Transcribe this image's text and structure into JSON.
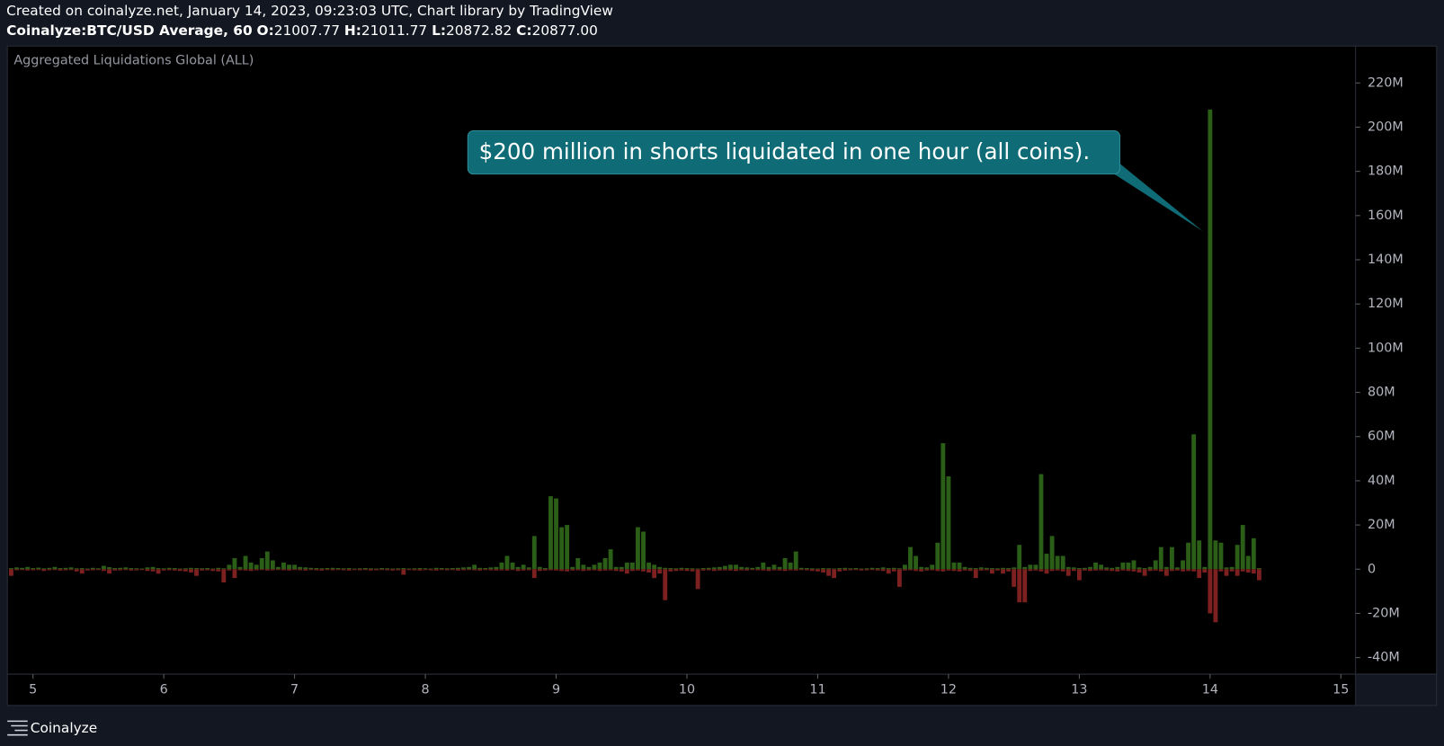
{
  "header": {
    "created": "Created on coinalyze.net, January 14, 2023, 09:23:03 UTC, Chart library by TradingView",
    "symbol": "Coinalyze:BTC/USD Average, 60",
    "ohlc": [
      {
        "label": "O:",
        "value": "21007.77"
      },
      {
        "label": "H:",
        "value": "21011.77"
      },
      {
        "label": "L:",
        "value": "20872.82"
      },
      {
        "label": "C:",
        "value": "20877.00"
      }
    ]
  },
  "footer": {
    "brand": "Coinalyze"
  },
  "chart_data": {
    "type": "bar",
    "title": "Aggregated Liquidations Global (ALL)",
    "annotation": "$200 million in shorts liquidated in one hour (all coins).",
    "x": [
      92,
      93,
      94,
      95,
      96,
      97,
      98,
      99,
      100,
      101,
      102,
      103,
      104,
      105,
      106,
      107,
      108,
      109,
      110,
      111,
      112,
      113,
      114,
      115,
      116,
      117,
      118,
      119,
      120,
      121,
      122,
      123,
      124,
      125,
      126,
      127,
      128,
      129,
      130,
      131,
      132,
      133,
      134,
      135,
      136,
      137,
      138,
      139,
      140,
      141,
      142,
      143,
      144,
      145,
      146,
      147,
      148,
      149,
      150,
      151,
      152,
      153,
      154,
      155,
      156,
      157,
      158,
      159,
      160,
      161,
      162,
      163,
      164,
      165,
      166,
      167,
      168,
      169,
      170,
      171,
      172,
      173,
      174,
      175,
      176,
      177,
      178,
      179,
      180,
      181,
      182,
      183,
      184,
      185,
      186,
      187,
      188,
      189,
      190,
      191,
      192,
      193,
      194,
      195,
      196,
      197,
      198,
      199,
      200,
      201,
      202,
      203,
      204,
      205,
      206,
      207,
      208,
      209,
      210,
      211,
      212,
      213,
      214,
      215,
      216,
      217,
      218,
      219,
      220,
      221,
      222,
      223,
      224,
      225,
      226,
      227,
      228,
      229,
      230,
      231,
      232,
      233,
      234,
      235,
      236,
      237,
      238,
      239,
      240,
      241,
      242,
      243,
      244,
      245,
      246,
      247,
      248,
      249,
      250,
      251,
      252,
      253,
      254,
      255,
      256,
      257,
      258,
      259,
      260,
      261,
      262,
      263,
      264,
      265,
      266,
      267,
      268,
      269,
      270,
      271,
      272,
      273,
      274,
      275,
      276,
      277,
      278,
      279,
      280,
      281,
      282,
      283,
      284,
      285,
      286,
      287,
      288,
      289,
      290,
      291,
      292,
      293,
      294,
      295,
      296,
      297,
      298,
      299,
      300,
      301,
      302,
      303,
      304,
      305,
      306,
      307,
      308,
      309,
      310,
      311,
      312,
      313,
      314,
      315,
      316,
      317,
      318,
      319,
      320,
      321
    ],
    "series": [
      {
        "color": "#2b5f18",
        "values": [
          0.5,
          0.8,
          0.6,
          1,
          0.5,
          0.7,
          0.4,
          0.6,
          1,
          0.5,
          0.6,
          0.8,
          0.4,
          0.5,
          0.3,
          0.6,
          0.4,
          1.5,
          0.9,
          0.5,
          0.6,
          0.8,
          0.5,
          0.4,
          0.3,
          0.8,
          1,
          0.5,
          0.4,
          0.6,
          0.5,
          0.3,
          0.4,
          0.6,
          0.5,
          0.4,
          0.5,
          0.3,
          0.6,
          0.4,
          2,
          5,
          1,
          6,
          3,
          2,
          5,
          8,
          4,
          1,
          3,
          2,
          2,
          1,
          0.8,
          0.6,
          0.5,
          0.4,
          0.5,
          0.6,
          0.5,
          0.4,
          0.5,
          0.3,
          0.4,
          0.5,
          0.4,
          0.3,
          0.5,
          0.4,
          0.3,
          0.4,
          0.5,
          0.3,
          0.4,
          0.5,
          0.4,
          0.3,
          0.6,
          0.5,
          0.4,
          0.5,
          0.6,
          0.8,
          1,
          2,
          0.6,
          0.5,
          0.8,
          1,
          3,
          6,
          3,
          1,
          2,
          0.8,
          15,
          1,
          0.5,
          33,
          32,
          19,
          20,
          1,
          5,
          2,
          1,
          2,
          3,
          5,
          9,
          1,
          1,
          3,
          3,
          19,
          17,
          3,
          2,
          1,
          0.6,
          0.5,
          0.4,
          0.6,
          0.5,
          0.4,
          0.3,
          0.5,
          0.6,
          0.8,
          1,
          1.5,
          2,
          2,
          1,
          0.8,
          0.6,
          1,
          3,
          1,
          2,
          1,
          5,
          3,
          8,
          0.6,
          0.5,
          0.4,
          0.3,
          0.5,
          0.4,
          0.3,
          0.5,
          0.6,
          0.4,
          0.5,
          0.3,
          0.4,
          0.6,
          0.5,
          0.8,
          0.5,
          0.6,
          0.4,
          2,
          10,
          6,
          1,
          0.8,
          2,
          12,
          57,
          42,
          3,
          3,
          1,
          0.6,
          0.5,
          0.8,
          0.6,
          0.5,
          0.4,
          0.6,
          0.5,
          0.8,
          11,
          1,
          2,
          2,
          43,
          7,
          15,
          6,
          6,
          1,
          0.8,
          0.5,
          0.6,
          1,
          3,
          2,
          0.8,
          0.6,
          1,
          3,
          3,
          4,
          0.8,
          0.5,
          1,
          4,
          10,
          1,
          10,
          0.8,
          4,
          12,
          61,
          13,
          1,
          208,
          13,
          12,
          0.8,
          1,
          11,
          20,
          6,
          14,
          0.5
        ]
      },
      {
        "color": "#7d2020",
        "values": [
          -3,
          -0.5,
          -0.4,
          -0.6,
          -0.5,
          -0.4,
          -0.8,
          -0.5,
          -0.4,
          -0.6,
          -0.5,
          -0.4,
          -1,
          -2,
          -0.6,
          -0.5,
          -0.4,
          -0.8,
          -2,
          -0.6,
          -0.5,
          -0.4,
          -0.6,
          -0.5,
          -0.4,
          -0.8,
          -1,
          -2,
          -0.6,
          -0.5,
          -0.6,
          -0.8,
          -1,
          -1.5,
          -3,
          -0.6,
          -0.5,
          -0.8,
          -1,
          -6,
          -0.6,
          -4,
          -0.5,
          -0.6,
          -0.8,
          -0.5,
          -0.4,
          -0.6,
          -0.5,
          -0.4,
          -0.5,
          -0.6,
          -0.4,
          -0.5,
          -0.6,
          -0.4,
          -0.5,
          -0.6,
          -0.4,
          -0.5,
          -0.4,
          -0.5,
          -0.6,
          -0.4,
          -0.5,
          -0.4,
          -0.6,
          -0.5,
          -0.4,
          -0.5,
          -0.6,
          -0.5,
          -2.5,
          -0.4,
          -0.5,
          -0.6,
          -0.4,
          -0.5,
          -0.6,
          -0.4,
          -0.5,
          -0.4,
          -0.6,
          -0.5,
          -0.4,
          -0.5,
          -0.6,
          -0.4,
          -0.5,
          -0.6,
          -0.5,
          -0.6,
          -0.4,
          -0.8,
          -0.6,
          -0.5,
          -4,
          -0.8,
          -0.6,
          -0.5,
          -0.6,
          -0.8,
          -1,
          -0.6,
          -0.5,
          -0.8,
          -0.6,
          -0.5,
          -0.8,
          -0.6,
          -0.5,
          -0.8,
          -1,
          -2,
          -0.8,
          -0.6,
          -1,
          -1.5,
          -4,
          -2,
          -14,
          -1,
          -0.8,
          -0.6,
          -0.8,
          -1,
          -9,
          -0.6,
          -0.5,
          -0.8,
          -0.6,
          -0.5,
          -0.6,
          -0.8,
          -0.5,
          -0.6,
          -0.4,
          -0.5,
          -0.6,
          -0.8,
          -0.5,
          -0.6,
          -0.8,
          -0.5,
          -0.6,
          -0.4,
          -0.5,
          -0.8,
          -1,
          -1.5,
          -3,
          -4,
          -1,
          -0.6,
          -0.5,
          -0.4,
          -0.6,
          -0.5,
          -0.4,
          -0.6,
          -0.8,
          -2,
          -1,
          -8,
          -0.6,
          -0.5,
          -0.8,
          -1,
          -0.6,
          -0.5,
          -0.8,
          -1,
          -0.6,
          -0.8,
          -1,
          -0.6,
          -0.8,
          -4,
          -0.6,
          -0.5,
          -2,
          -0.6,
          -2,
          -1,
          -8,
          -15,
          -15,
          -0.8,
          -0.6,
          -1,
          -2,
          -0.8,
          -0.6,
          -1,
          -3,
          -0.8,
          -5,
          -0.6,
          -0.8,
          -0.6,
          -0.5,
          -0.6,
          -0.8,
          -1,
          -0.6,
          -0.8,
          -1,
          -1.5,
          -3,
          -0.8,
          -0.6,
          -1,
          -3,
          -0.8,
          -0.6,
          -1,
          -0.8,
          -1,
          -4,
          -1.5,
          -20,
          -24,
          -1,
          -3,
          -1,
          -3,
          -1,
          -1.5,
          -2,
          -5
        ]
      }
    ],
    "xlim": [
      91.3,
      338.7
    ],
    "xticks": [
      {
        "value": 96,
        "label": "5"
      },
      {
        "value": 120,
        "label": "6"
      },
      {
        "value": 144,
        "label": "7"
      },
      {
        "value": 168,
        "label": "8"
      },
      {
        "value": 192,
        "label": "9"
      },
      {
        "value": 216,
        "label": "10"
      },
      {
        "value": 240,
        "label": "11"
      },
      {
        "value": 264,
        "label": "12"
      },
      {
        "value": 288,
        "label": "13"
      },
      {
        "value": 312,
        "label": "14"
      },
      {
        "value": 336,
        "label": "15"
      }
    ],
    "ylim": [
      -47.5,
      236.7
    ],
    "yticks": [
      {
        "value": -40,
        "label": "-40M"
      },
      {
        "value": -20,
        "label": "-20M"
      },
      0,
      {
        "value": 20,
        "label": "20M"
      },
      {
        "value": 40,
        "label": "40M"
      },
      {
        "value": 60,
        "label": "60M"
      },
      {
        "value": 80,
        "label": "80M"
      },
      {
        "value": 100,
        "label": "100M"
      },
      {
        "value": 120,
        "label": "120M"
      },
      {
        "value": 140,
        "label": "140M"
      },
      {
        "value": 160,
        "label": "160M"
      },
      {
        "value": 180,
        "label": "180M"
      },
      {
        "value": 200,
        "label": "200M"
      },
      {
        "value": 220,
        "label": "220M"
      }
    ]
  }
}
